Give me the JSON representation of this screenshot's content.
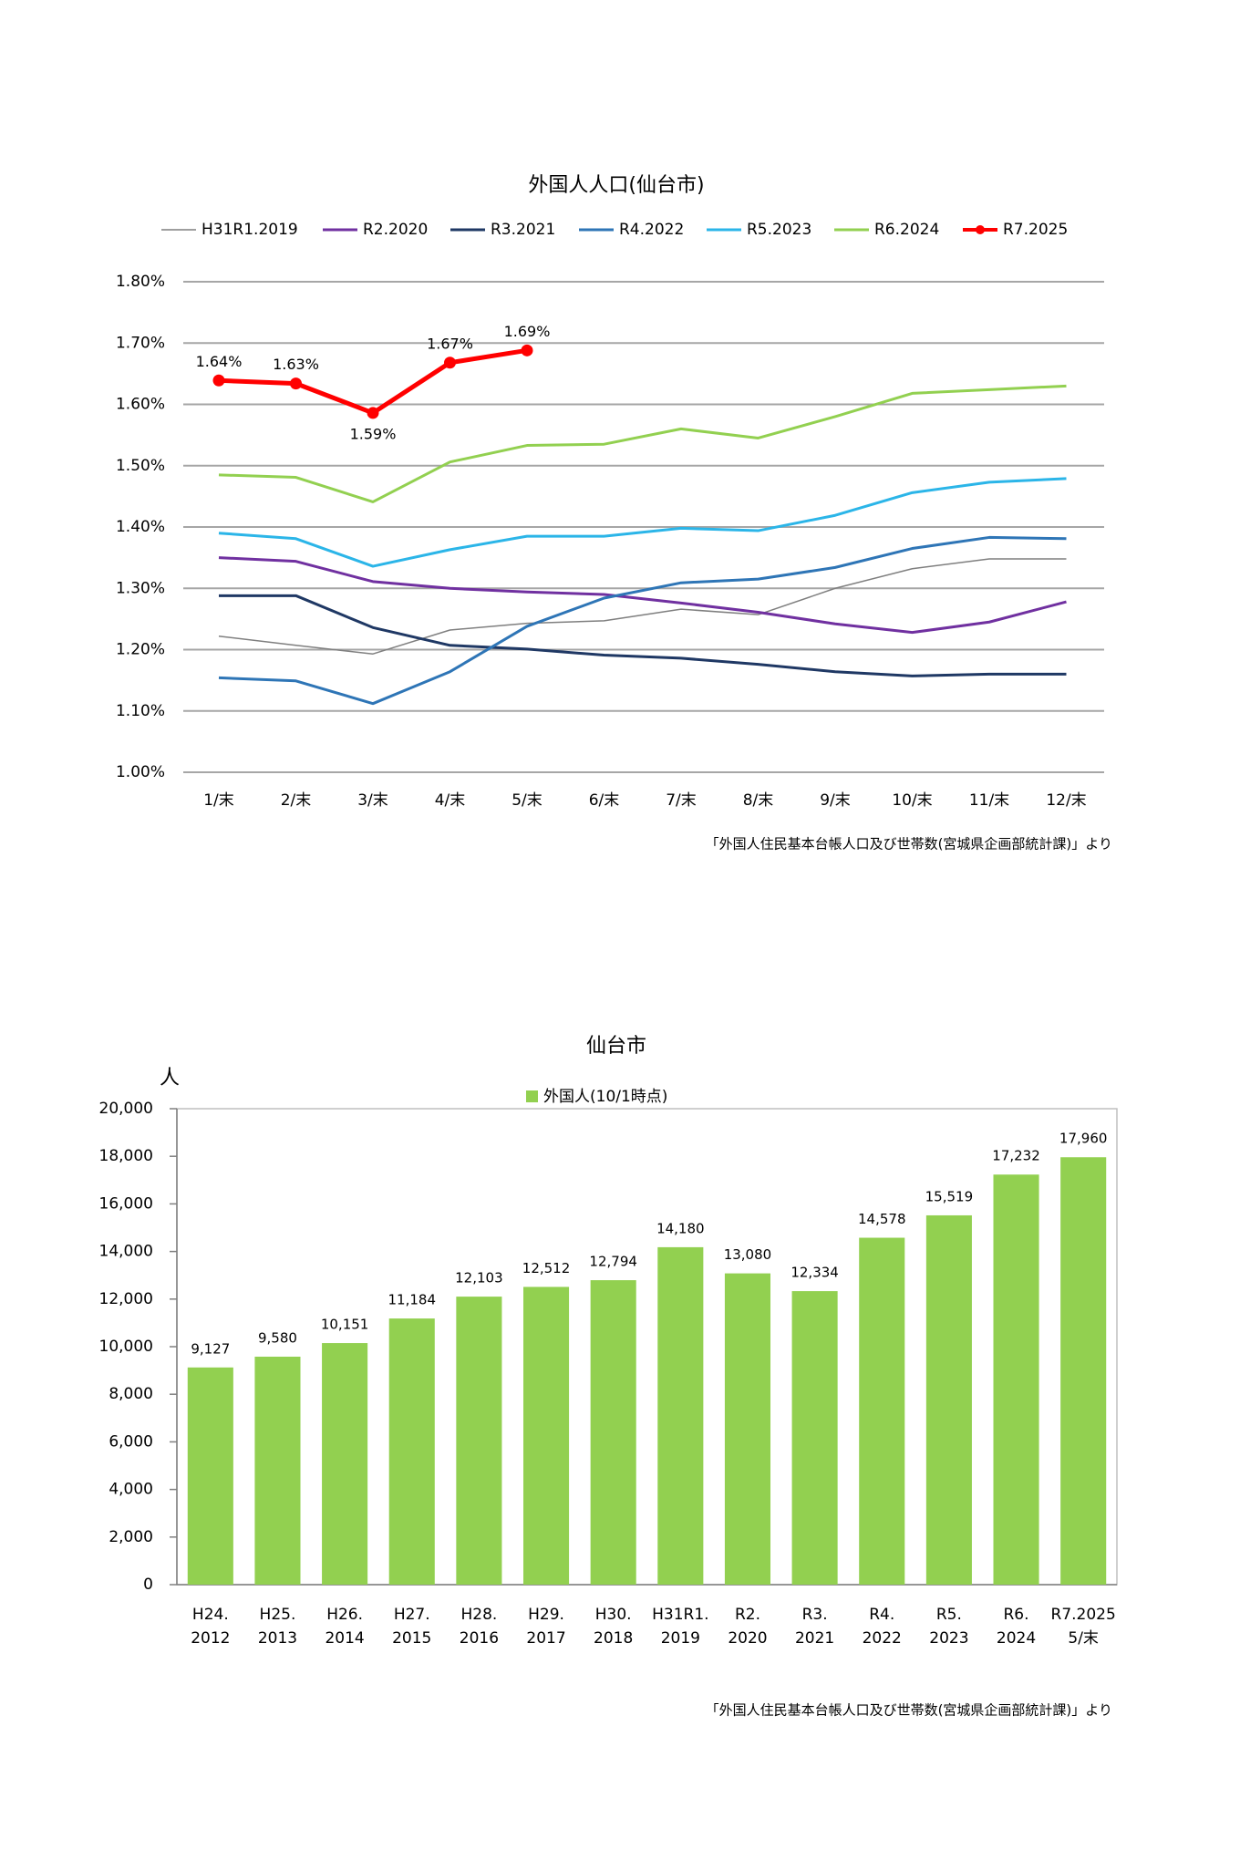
{
  "chart_data": [
    {
      "type": "line",
      "title": "外国人人口(仙台市)",
      "categories": [
        "1/末",
        "2/末",
        "3/末",
        "4/末",
        "5/末",
        "6/末",
        "7/末",
        "8/末",
        "9/末",
        "10/末",
        "11/末",
        "12/末"
      ],
      "series": [
        {
          "name": "H31R1.2019",
          "color": "#7f7f7f",
          "values": [
            1.222,
            1.207,
            1.193,
            1.232,
            1.243,
            1.247,
            1.266,
            1.257,
            1.3,
            1.332,
            1.348,
            1.348
          ]
        },
        {
          "name": "R2.2020",
          "color": "#7030a0",
          "values": [
            1.35,
            1.344,
            1.311,
            1.3,
            1.294,
            1.29,
            1.276,
            1.261,
            1.242,
            1.228,
            1.245,
            1.278
          ]
        },
        {
          "name": "R3.2021",
          "color": "#1f3864",
          "values": [
            1.288,
            1.288,
            1.236,
            1.207,
            1.201,
            1.191,
            1.186,
            1.176,
            1.164,
            1.157,
            1.16,
            1.16
          ]
        },
        {
          "name": "R4.2022",
          "color": "#2e75b6",
          "values": [
            1.154,
            1.149,
            1.112,
            1.164,
            1.238,
            1.284,
            1.309,
            1.315,
            1.334,
            1.365,
            1.383,
            1.381
          ]
        },
        {
          "name": "R5.2023",
          "color": "#2bb5e8",
          "values": [
            1.39,
            1.381,
            1.336,
            1.363,
            1.385,
            1.385,
            1.398,
            1.394,
            1.419,
            1.456,
            1.473,
            1.479
          ]
        },
        {
          "name": "R6.2024",
          "color": "#92d050",
          "values": [
            1.485,
            1.481,
            1.441,
            1.506,
            1.533,
            1.535,
            1.56,
            1.545,
            1.58,
            1.618,
            1.624,
            1.63
          ]
        },
        {
          "name": "R7.2025",
          "color": "#ff0000",
          "marker": true,
          "values": [
            1.639,
            1.634,
            1.586,
            1.668,
            1.688,
            null,
            null,
            null,
            null,
            null,
            null,
            null
          ],
          "value_labels": [
            "1.64%",
            "1.63%",
            "1.59%",
            "1.67%",
            "1.69%",
            null,
            null,
            null,
            null,
            null,
            null,
            null
          ]
        }
      ],
      "ylim": [
        1.0,
        1.8
      ],
      "yticks": [
        {
          "value": 1.0,
          "label": "1.00%"
        },
        {
          "value": 1.1,
          "label": "1.10%"
        },
        {
          "value": 1.2,
          "label": "1.20%"
        },
        {
          "value": 1.3,
          "label": "1.30%"
        },
        {
          "value": 1.4,
          "label": "1.40%"
        },
        {
          "value": 1.5,
          "label": "1.50%"
        },
        {
          "value": 1.6,
          "label": "1.60%"
        },
        {
          "value": 1.7,
          "label": "1.70%"
        },
        {
          "value": 1.8,
          "label": "1.80%"
        }
      ],
      "grid": true,
      "source": "「外国人住民基本台帳人口及び世帯数(宮城県企画部統計課)」より"
    },
    {
      "type": "bar",
      "title": "仙台市",
      "y_label": "人",
      "categories": [
        [
          "H24.",
          "2012"
        ],
        [
          "H25.",
          "2013"
        ],
        [
          "H26.",
          "2014"
        ],
        [
          "H27.",
          "2015"
        ],
        [
          "H28.",
          "2016"
        ],
        [
          "H29.",
          "2017"
        ],
        [
          "H30.",
          "2018"
        ],
        [
          "H31R1.",
          "2019"
        ],
        [
          "R2.",
          "2020"
        ],
        [
          "R3.",
          "2021"
        ],
        [
          "R4.",
          "2022"
        ],
        [
          "R5.",
          "2023"
        ],
        [
          "R6.",
          "2024"
        ],
        [
          "R7.2025",
          "5/末"
        ]
      ],
      "series": [
        {
          "name": "外国人(10/1時点)",
          "color": "#92d050",
          "values": [
            9127,
            9580,
            10151,
            11184,
            12103,
            12512,
            12794,
            14180,
            13080,
            12334,
            14578,
            15519,
            17232,
            17960
          ],
          "value_labels": [
            "9,127",
            "9,580",
            "10,151",
            "11,184",
            "12,103",
            "12,512",
            "12,794",
            "14,180",
            "13,080",
            "12,334",
            "14,578",
            "15,519",
            "17,232",
            "17,960"
          ]
        }
      ],
      "ylim": [
        0,
        20000
      ],
      "yticks": [
        0,
        {
          "value": 2000,
          "label": "2,000"
        },
        {
          "value": 4000,
          "label": "4,000"
        },
        {
          "value": 6000,
          "label": "6,000"
        },
        {
          "value": 8000,
          "label": "8,000"
        },
        {
          "value": 10000,
          "label": "10,000"
        },
        {
          "value": 12000,
          "label": "12,000"
        },
        {
          "value": 14000,
          "label": "14,000"
        },
        {
          "value": 16000,
          "label": "16,000"
        },
        {
          "value": 18000,
          "label": "18,000"
        },
        {
          "value": 20000,
          "label": "20,000"
        }
      ],
      "source": "「外国人住民基本台帳人口及び世帯数(宮城県企画部統計課)」より"
    }
  ]
}
